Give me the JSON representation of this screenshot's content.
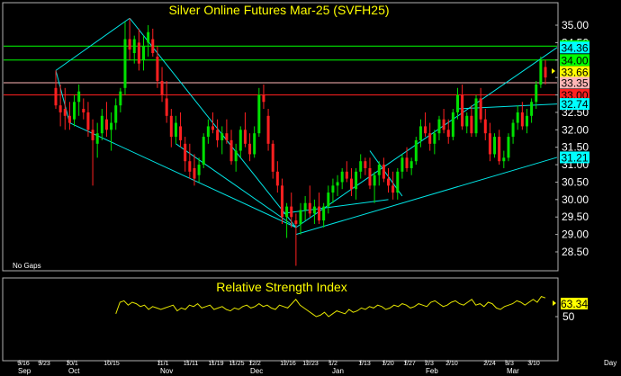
{
  "chart_data": [
    {
      "type": "candlestick",
      "title": "Silver Online Futures Mar-25 (SVFH25)",
      "note": "No Gaps",
      "ylim": [
        28.1,
        35.3
      ],
      "y_ticks": [
        "28.50",
        "29.00",
        "29.50",
        "30.00",
        "30.50",
        "31.00",
        "31.50",
        "32.00",
        "32.50",
        "33.00",
        "33.50",
        "34.00",
        "34.50",
        "35.00"
      ],
      "bars": [
        [
          33.2,
          33.7,
          32.6,
          32.7
        ],
        [
          32.7,
          33.3,
          32.1,
          32.5
        ],
        [
          32.6,
          33.2,
          32.0,
          32.4
        ],
        [
          32.4,
          32.8,
          32.0,
          32.2
        ],
        [
          32.3,
          33.0,
          32.1,
          32.8
        ],
        [
          32.8,
          33.3,
          32.4,
          33.1
        ],
        [
          32.6,
          32.9,
          32.3,
          32.5
        ],
        [
          32.5,
          32.8,
          31.8,
          32.0
        ],
        [
          32.0,
          32.3,
          30.4,
          31.7
        ],
        [
          31.6,
          32.2,
          31.2,
          31.9
        ],
        [
          31.9,
          32.6,
          31.7,
          32.4
        ],
        [
          32.3,
          32.8,
          31.8,
          32.0
        ],
        [
          32.0,
          32.5,
          31.4,
          32.2
        ],
        [
          32.2,
          32.9,
          32.0,
          32.7
        ],
        [
          32.7,
          33.2,
          32.5,
          33.1
        ],
        [
          33.2,
          35.1,
          33.0,
          34.6
        ],
        [
          34.6,
          35.2,
          34.0,
          34.3
        ],
        [
          34.2,
          34.7,
          33.9,
          34.6
        ],
        [
          34.5,
          34.9,
          33.7,
          33.9
        ],
        [
          34.0,
          34.7,
          33.7,
          34.4
        ],
        [
          34.5,
          35.0,
          34.1,
          34.8
        ],
        [
          34.6,
          34.9,
          34.1,
          34.2
        ],
        [
          34.1,
          34.4,
          33.2,
          33.4
        ],
        [
          33.4,
          33.8,
          32.8,
          33.0
        ],
        [
          32.9,
          33.4,
          32.2,
          32.4
        ],
        [
          32.4,
          32.6,
          31.5,
          31.8
        ],
        [
          31.8,
          32.4,
          31.6,
          32.2
        ],
        [
          32.1,
          32.5,
          31.5,
          31.7
        ],
        [
          31.6,
          31.8,
          30.8,
          31.1
        ],
        [
          31.1,
          31.6,
          30.6,
          30.8
        ],
        [
          30.9,
          31.3,
          30.4,
          30.6
        ],
        [
          30.7,
          31.2,
          30.5,
          31.0
        ],
        [
          31.0,
          31.9,
          30.9,
          31.8
        ],
        [
          31.8,
          32.3,
          31.6,
          32.1
        ],
        [
          32.1,
          32.5,
          31.9,
          32.0
        ],
        [
          32.0,
          32.3,
          31.5,
          31.7
        ],
        [
          31.7,
          32.1,
          31.3,
          31.9
        ],
        [
          31.9,
          32.3,
          31.6,
          31.7
        ],
        [
          31.7,
          32.0,
          31.0,
          31.1
        ],
        [
          31.1,
          31.6,
          30.8,
          31.4
        ],
        [
          31.4,
          32.1,
          31.2,
          32.0
        ],
        [
          32.0,
          32.5,
          31.5,
          31.6
        ],
        [
          31.6,
          31.9,
          31.1,
          31.3
        ],
        [
          31.3,
          32.1,
          31.2,
          31.9
        ],
        [
          31.9,
          33.2,
          31.8,
          33.0
        ],
        [
          33.0,
          33.3,
          32.6,
          32.8
        ],
        [
          32.4,
          32.6,
          31.4,
          31.6
        ],
        [
          31.6,
          31.7,
          30.6,
          30.8
        ],
        [
          30.8,
          31.1,
          30.2,
          30.4
        ],
        [
          30.4,
          30.6,
          29.3,
          29.5
        ],
        [
          29.5,
          29.9,
          28.9,
          29.8
        ],
        [
          29.8,
          30.2,
          29.2,
          29.5
        ],
        [
          29.4,
          29.6,
          28.1,
          29.3
        ],
        [
          29.3,
          29.9,
          29.0,
          29.7
        ],
        [
          29.7,
          30.1,
          29.4,
          29.9
        ],
        [
          29.9,
          30.4,
          29.5,
          29.6
        ],
        [
          29.6,
          30.0,
          29.3,
          29.8
        ],
        [
          29.8,
          30.2,
          29.3,
          29.4
        ],
        [
          29.4,
          29.9,
          29.2,
          29.8
        ],
        [
          29.8,
          30.4,
          29.6,
          30.2
        ],
        [
          30.2,
          30.6,
          29.9,
          30.4
        ],
        [
          30.4,
          30.7,
          30.1,
          30.5
        ],
        [
          30.5,
          30.9,
          30.3,
          30.8
        ],
        [
          30.8,
          31.1,
          30.5,
          30.6
        ],
        [
          30.6,
          30.9,
          30.1,
          30.3
        ],
        [
          30.3,
          30.9,
          30.0,
          30.8
        ],
        [
          30.8,
          31.3,
          30.6,
          31.1
        ],
        [
          31.1,
          31.2,
          30.7,
          30.9
        ],
        [
          30.9,
          31.2,
          30.3,
          30.4
        ],
        [
          30.4,
          30.8,
          29.9,
          30.7
        ],
        [
          30.7,
          31.1,
          30.4,
          31.0
        ],
        [
          31.0,
          31.2,
          30.5,
          30.6
        ],
        [
          30.6,
          30.9,
          30.2,
          30.4
        ],
        [
          30.4,
          30.8,
          30.0,
          30.2
        ],
        [
          30.2,
          30.9,
          30.0,
          30.8
        ],
        [
          30.8,
          31.3,
          30.6,
          31.2
        ],
        [
          31.2,
          31.5,
          30.8,
          30.9
        ],
        [
          30.9,
          31.2,
          30.7,
          31.1
        ],
        [
          31.1,
          31.8,
          31.0,
          31.7
        ],
        [
          31.7,
          32.3,
          31.5,
          32.1
        ],
        [
          32.1,
          32.5,
          31.8,
          31.9
        ],
        [
          31.9,
          32.2,
          31.4,
          31.6
        ],
        [
          31.6,
          32.0,
          31.3,
          31.9
        ],
        [
          31.9,
          32.4,
          31.7,
          32.3
        ],
        [
          32.3,
          32.6,
          31.9,
          32.0
        ],
        [
          32.0,
          32.3,
          31.6,
          31.8
        ],
        [
          31.8,
          32.6,
          31.7,
          32.5
        ],
        [
          32.5,
          33.2,
          32.3,
          33.0
        ],
        [
          33.0,
          33.3,
          32.0,
          32.1
        ],
        [
          32.1,
          32.5,
          31.9,
          32.4
        ],
        [
          32.4,
          32.7,
          31.8,
          31.9
        ],
        [
          31.9,
          33.0,
          31.8,
          32.9
        ],
        [
          32.9,
          33.2,
          32.2,
          32.3
        ],
        [
          32.3,
          32.6,
          31.7,
          31.9
        ],
        [
          31.9,
          32.2,
          31.1,
          31.3
        ],
        [
          31.3,
          31.9,
          31.2,
          31.8
        ],
        [
          31.8,
          32.0,
          31.0,
          31.1
        ],
        [
          31.1,
          31.4,
          30.9,
          31.2
        ],
        [
          31.2,
          31.9,
          31.1,
          31.8
        ],
        [
          31.8,
          32.3,
          31.6,
          32.2
        ],
        [
          32.2,
          32.7,
          32.0,
          32.5
        ],
        [
          32.5,
          32.8,
          32.0,
          32.1
        ],
        [
          32.1,
          32.6,
          31.9,
          32.4
        ],
        [
          32.4,
          32.9,
          32.2,
          32.8
        ],
        [
          32.8,
          33.4,
          32.6,
          33.3
        ],
        [
          33.3,
          34.1,
          33.2,
          34.0
        ],
        [
          33.8,
          34.0,
          33.3,
          33.5
        ]
      ],
      "price_levels": [
        {
          "value": "34.40",
          "color": "#00ff00"
        },
        {
          "value": "34.36",
          "color": "#00ffff"
        },
        {
          "value": "34.00",
          "color": "#00ff00"
        },
        {
          "value": "33.66",
          "color": "#ffff00"
        },
        {
          "value": "33.35",
          "color": "#ffb6b6"
        },
        {
          "value": "33.00",
          "color": "#ff2020"
        },
        {
          "value": "32.74",
          "color": "#00ffff"
        },
        {
          "value": "31.21",
          "color": "#00ffff"
        }
      ],
      "x_day_labels": [
        "9/16",
        "9/23",
        "10/1",
        "10/15",
        "11/1",
        "11/11",
        "11/19",
        "11/25",
        "12/2",
        "12/16",
        "12/23",
        "1/2",
        "1/13",
        "1/20",
        "1/27",
        "2/3",
        "2/10",
        "2/24",
        "3/3",
        "3/10"
      ],
      "x_month_labels": [
        "Sep",
        "Oct",
        "Nov",
        "Dec",
        "Jan",
        "Feb",
        "Mar"
      ],
      "x_axis_unit": "Day"
    },
    {
      "type": "line",
      "title": "Relative Strength Index",
      "y_ticks": [
        "50"
      ],
      "last_value": "63.34",
      "values": [
        52,
        60,
        61,
        58,
        60,
        59,
        57,
        58,
        55,
        57,
        56,
        55,
        56,
        57,
        58,
        54,
        56,
        55,
        58,
        57,
        59,
        56,
        57,
        58,
        55,
        56,
        57,
        55,
        54,
        56,
        55,
        57,
        58,
        56,
        57,
        59,
        57,
        58,
        56,
        55,
        58,
        57,
        56,
        59,
        62,
        58,
        56,
        54,
        52,
        50,
        51,
        53,
        50,
        52,
        54,
        53,
        52,
        55,
        53,
        54,
        56,
        55,
        57,
        56,
        58,
        57,
        55,
        56,
        58,
        57,
        59,
        58,
        56,
        57,
        59,
        58,
        57,
        60,
        61,
        59,
        57,
        58,
        60,
        61,
        59,
        58,
        60,
        62,
        58,
        59,
        57,
        60,
        59,
        56,
        55,
        57,
        58,
        59,
        61,
        60,
        58,
        60,
        62,
        60,
        64,
        63
      ]
    }
  ],
  "colors": {
    "up": "#00e000",
    "down": "#ff2020",
    "trendline": "#00e5e5",
    "rsi_line": "#e6e600",
    "title": "#ffff00",
    "panel_border": "#b0b0b0"
  }
}
